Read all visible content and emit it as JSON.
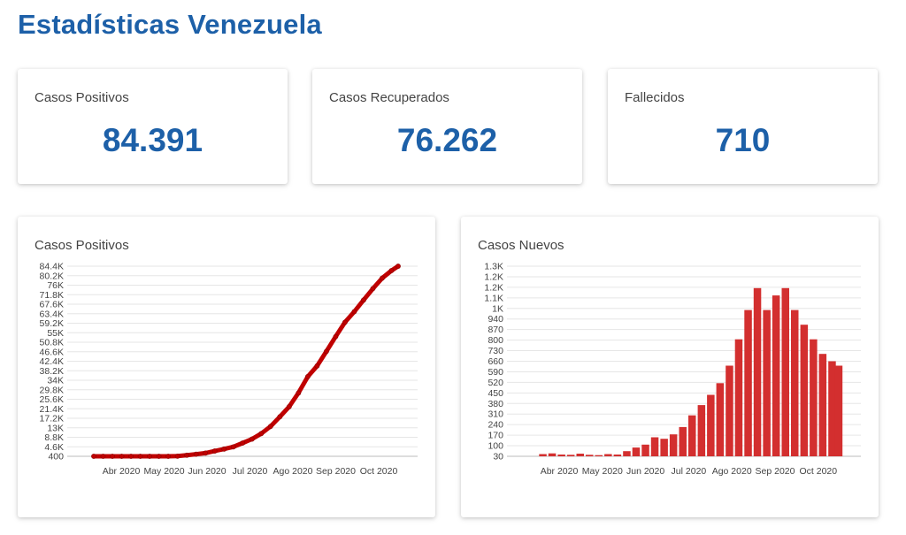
{
  "page": {
    "title": "Estadísticas Venezuela"
  },
  "stats": [
    {
      "label": "Casos Positivos",
      "value": "84.391"
    },
    {
      "label": "Casos Recuperados",
      "value": "76.262"
    },
    {
      "label": "Fallecidos",
      "value": "710"
    }
  ],
  "colors": {
    "accent": "#1d60a8",
    "series_line": "#c00000",
    "series_bar": "#d32f2f",
    "grid": "#e6e6e6"
  },
  "chart_data": [
    {
      "type": "line",
      "title": "Casos Positivos",
      "x_tick_labels": [
        "Abr 2020",
        "May 2020",
        "Jun 2020",
        "Jul 2020",
        "Ago 2020",
        "Sep 2020",
        "Oct 2020"
      ],
      "y_tick_labels": [
        "84.4K",
        "80.2K",
        "76K",
        "71.8K",
        "67.6K",
        "63.4K",
        "59.2K",
        "55K",
        "50.8K",
        "46.6K",
        "42.4K",
        "38.2K",
        "34K",
        "29.8K",
        "25.6K",
        "21.4K",
        "17.2K",
        "13K",
        "8.8K",
        "4.6K",
        "400"
      ],
      "ylim": [
        400,
        84400
      ],
      "x_range": [
        "2020-03-13",
        "2020-10-28"
      ],
      "grid": true,
      "series": [
        {
          "x": [
            "2020-03-13",
            "2020-03-20",
            "2020-03-27",
            "2020-04-03",
            "2020-04-10",
            "2020-04-17",
            "2020-04-24",
            "2020-05-01",
            "2020-05-08",
            "2020-05-15",
            "2020-05-22",
            "2020-05-29",
            "2020-06-05",
            "2020-06-12",
            "2020-06-19",
            "2020-06-26",
            "2020-07-03",
            "2020-07-10",
            "2020-07-17",
            "2020-07-24",
            "2020-07-31",
            "2020-08-07",
            "2020-08-14",
            "2020-08-21",
            "2020-08-28",
            "2020-09-04",
            "2020-09-11",
            "2020-09-18",
            "2020-09-25",
            "2020-10-02",
            "2020-10-09",
            "2020-10-16",
            "2020-10-23",
            "2020-10-28"
          ],
          "y": [
            2,
            42,
            107,
            153,
            171,
            256,
            311,
            331,
            388,
            459,
            882,
            1327,
            1819,
            2738,
            3591,
            4563,
            6273,
            8010,
            10428,
            13613,
            17859,
            22299,
            28365,
            35605,
            40338,
            46728,
            53289,
            59630,
            64284,
            69439,
            74495,
            79117,
            82453,
            84391
          ]
        }
      ]
    },
    {
      "type": "bar",
      "title": "Casos Nuevos",
      "x_tick_labels": [
        "Abr 2020",
        "May 2020",
        "Jun 2020",
        "Jul 2020",
        "Ago 2020",
        "Sep 2020",
        "Oct 2020"
      ],
      "y_tick_labels": [
        "1.3K",
        "1.2K",
        "1.2K",
        "1.1K",
        "1K",
        "940",
        "870",
        "800",
        "730",
        "660",
        "590",
        "520",
        "450",
        "380",
        "310",
        "240",
        "170",
        "100",
        "30"
      ],
      "ylim": [
        0,
        1300
      ],
      "x_range": [
        "2020-03-13",
        "2020-10-28"
      ],
      "grid": true,
      "series": [
        {
          "x": [
            "2020-03-20",
            "2020-03-27",
            "2020-04-03",
            "2020-04-10",
            "2020-04-17",
            "2020-04-24",
            "2020-05-01",
            "2020-05-08",
            "2020-05-15",
            "2020-05-22",
            "2020-05-29",
            "2020-06-05",
            "2020-06-12",
            "2020-06-19",
            "2020-06-26",
            "2020-07-03",
            "2020-07-10",
            "2020-07-17",
            "2020-07-24",
            "2020-07-31",
            "2020-08-07",
            "2020-08-14",
            "2020-08-21",
            "2020-08-28",
            "2020-09-04",
            "2020-09-11",
            "2020-09-18",
            "2020-09-25",
            "2020-10-02",
            "2020-10-09",
            "2020-10-16",
            "2020-10-23",
            "2020-10-28"
          ],
          "y": [
            15,
            20,
            12,
            10,
            18,
            10,
            8,
            15,
            12,
            35,
            60,
            80,
            130,
            120,
            150,
            200,
            280,
            350,
            420,
            500,
            620,
            800,
            1000,
            1150,
            1000,
            1100,
            1150,
            1000,
            900,
            800,
            700,
            650,
            620
          ]
        }
      ]
    }
  ]
}
